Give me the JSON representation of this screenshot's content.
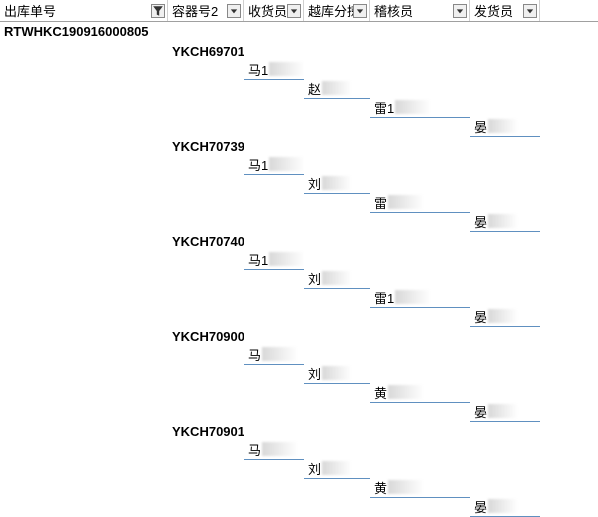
{
  "headers": {
    "c1": "出库单号",
    "c2": "容器号2",
    "c3": "收货员",
    "c4": "越库分拣",
    "c5": "稽核员",
    "c6": "发货员"
  },
  "order_id": "RTWHKC190916000805",
  "groups": [
    {
      "container": "YKCH69701",
      "receiver_prefix": "马1",
      "cross_prefix": "赵",
      "auditor_prefix": "雷1",
      "shipper_prefix": "晏"
    },
    {
      "container": "YKCH70739",
      "receiver_prefix": "马1",
      "cross_prefix": "刘",
      "auditor_prefix": "雷",
      "shipper_prefix": "晏"
    },
    {
      "container": "YKCH70740",
      "receiver_prefix": "马1",
      "cross_prefix": "刘",
      "auditor_prefix": "雷1",
      "shipper_prefix": "晏"
    },
    {
      "container": "YKCH70900",
      "receiver_prefix": "马",
      "cross_prefix": "刘",
      "auditor_prefix": "黄",
      "shipper_prefix": "晏"
    },
    {
      "container": "YKCH70901",
      "receiver_prefix": "马",
      "cross_prefix": "刘",
      "auditor_prefix": "黄",
      "shipper_prefix": "晏"
    }
  ],
  "blur_widths": {
    "receiver": 36,
    "cross": 30,
    "auditor": 36,
    "shipper": 30
  },
  "colors": {
    "underline": "#6090c0",
    "border": "#a0a0a0"
  }
}
